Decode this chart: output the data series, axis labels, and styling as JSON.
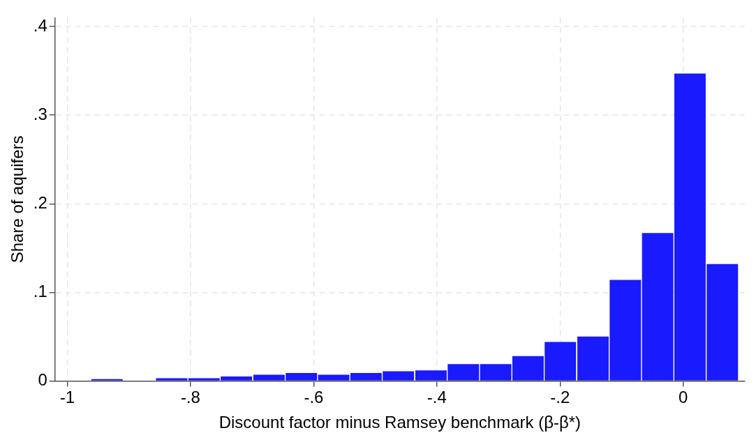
{
  "chart_data": {
    "type": "histogram",
    "xlabel": "Discount factor minus Ramsey benchmark (β-β*)",
    "ylabel": "Share of aquifers",
    "bins": [
      -0.962,
      -0.909,
      -0.857,
      -0.804,
      -0.752,
      -0.699,
      -0.646,
      -0.594,
      -0.541,
      -0.489,
      -0.436,
      -0.383,
      -0.331,
      -0.278,
      -0.226,
      -0.173,
      -0.12,
      -0.068,
      -0.015,
      0.037,
      0.09
    ],
    "values": [
      0.002,
      0,
      0.003,
      0.003,
      0.005,
      0.007,
      0.009,
      0.007,
      0.009,
      0.011,
      0.012,
      0.019,
      0.019,
      0.028,
      0.044,
      0.05,
      0.114,
      0.167,
      0.347,
      0.132
    ],
    "color": "#1a1aff",
    "xlim": [
      -1.02,
      0.1
    ],
    "xticks": [
      -1,
      {
        "value": -0.8,
        "label": "-.8"
      },
      {
        "value": -0.6,
        "label": "-.6"
      },
      {
        "value": -0.4,
        "label": "-.4"
      },
      {
        "value": -0.2,
        "label": "-.2"
      },
      0
    ],
    "ylim": [
      0,
      0.41
    ],
    "yticks": [
      0,
      {
        "value": 0.1,
        "label": ".1"
      },
      {
        "value": 0.2,
        "label": ".2"
      },
      {
        "value": 0.3,
        "label": ".3"
      },
      {
        "value": 0.4,
        "label": ".4"
      }
    ],
    "grid": true,
    "legend": false
  }
}
